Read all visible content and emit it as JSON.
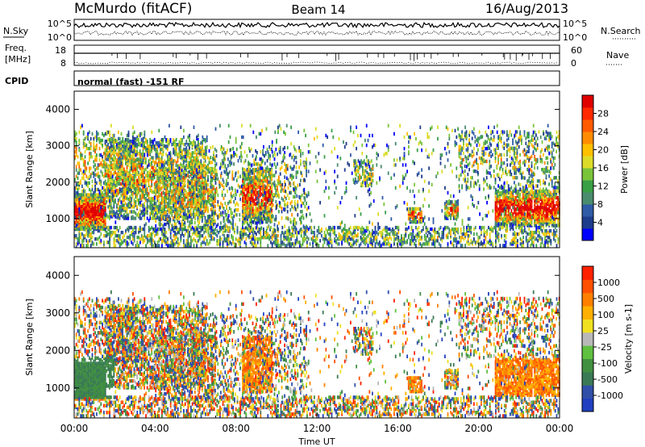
{
  "header": {
    "station": "McMurdo (fitACF)",
    "beam": "Beam 14",
    "date": "16/Aug/2013"
  },
  "aux": {
    "nsky_label": "N.Sky",
    "nsearch_label": "N.Search",
    "freq_label_1": "Freq.",
    "freq_label_2": "[MHz]",
    "nave_label": "Nave",
    "cpid_label": "CPID",
    "cpid_value": "normal (fast) -151 RF",
    "noise_ticks_left": [
      "10^5",
      "10^0"
    ],
    "noise_ticks_right": [
      "10^5",
      "10^0"
    ],
    "freq_ticks": [
      "18",
      "8"
    ],
    "nave_ticks": [
      "60",
      "0"
    ]
  },
  "colorbars": {
    "power": {
      "label": "Power [dB]",
      "ticks": [
        "28",
        "24",
        "20",
        "16",
        "12",
        "8",
        "4"
      ],
      "colors": [
        "#0000ff",
        "#1e3c8c",
        "#2e5aa6",
        "#4a8c6e",
        "#3aa046",
        "#7ac43a",
        "#dcdc28",
        "#ffc000",
        "#ff8c00",
        "#ff5a00",
        "#ff2800",
        "#e00000"
      ]
    },
    "velocity": {
      "label": "Velocity [m s-1]",
      "ticks": [
        "1000",
        "500",
        "100",
        "25",
        "-25",
        "-100",
        "-500",
        "-1000"
      ],
      "colors": [
        "#2040c0",
        "#3050a8",
        "#3a7a55",
        "#409040",
        "#60c040",
        "#b8b8b8",
        "#f0e020",
        "#ffb000",
        "#ff8000",
        "#ff5000",
        "#ff2000"
      ]
    }
  },
  "chart_data": [
    {
      "type": "heatmap",
      "title": "",
      "variable": "Power",
      "ylabel": "Slant Range [km]",
      "xlabel": "",
      "y_ticks": [
        "1000",
        "2000",
        "3000",
        "4000"
      ],
      "ylim": [
        200,
        4500
      ],
      "xlim": [
        "00:00",
        "24:00"
      ],
      "x_ticks": [],
      "colorbar_label": "Power [dB]",
      "clim": [
        0,
        30
      ]
    },
    {
      "type": "heatmap",
      "title": "",
      "variable": "Velocity",
      "ylabel": "Slant Range [km]",
      "xlabel": "Time UT",
      "y_ticks": [
        "1000",
        "2000",
        "3000",
        "4000"
      ],
      "x_ticks": [
        "00:00",
        "04:00",
        "08:00",
        "12:00",
        "16:00",
        "20:00",
        "00:00"
      ],
      "ylim": [
        200,
        4500
      ],
      "xlim": [
        "00:00",
        "24:00"
      ],
      "colorbar_label": "Velocity [m s-1]",
      "clim": [
        -1000,
        1000
      ]
    }
  ]
}
